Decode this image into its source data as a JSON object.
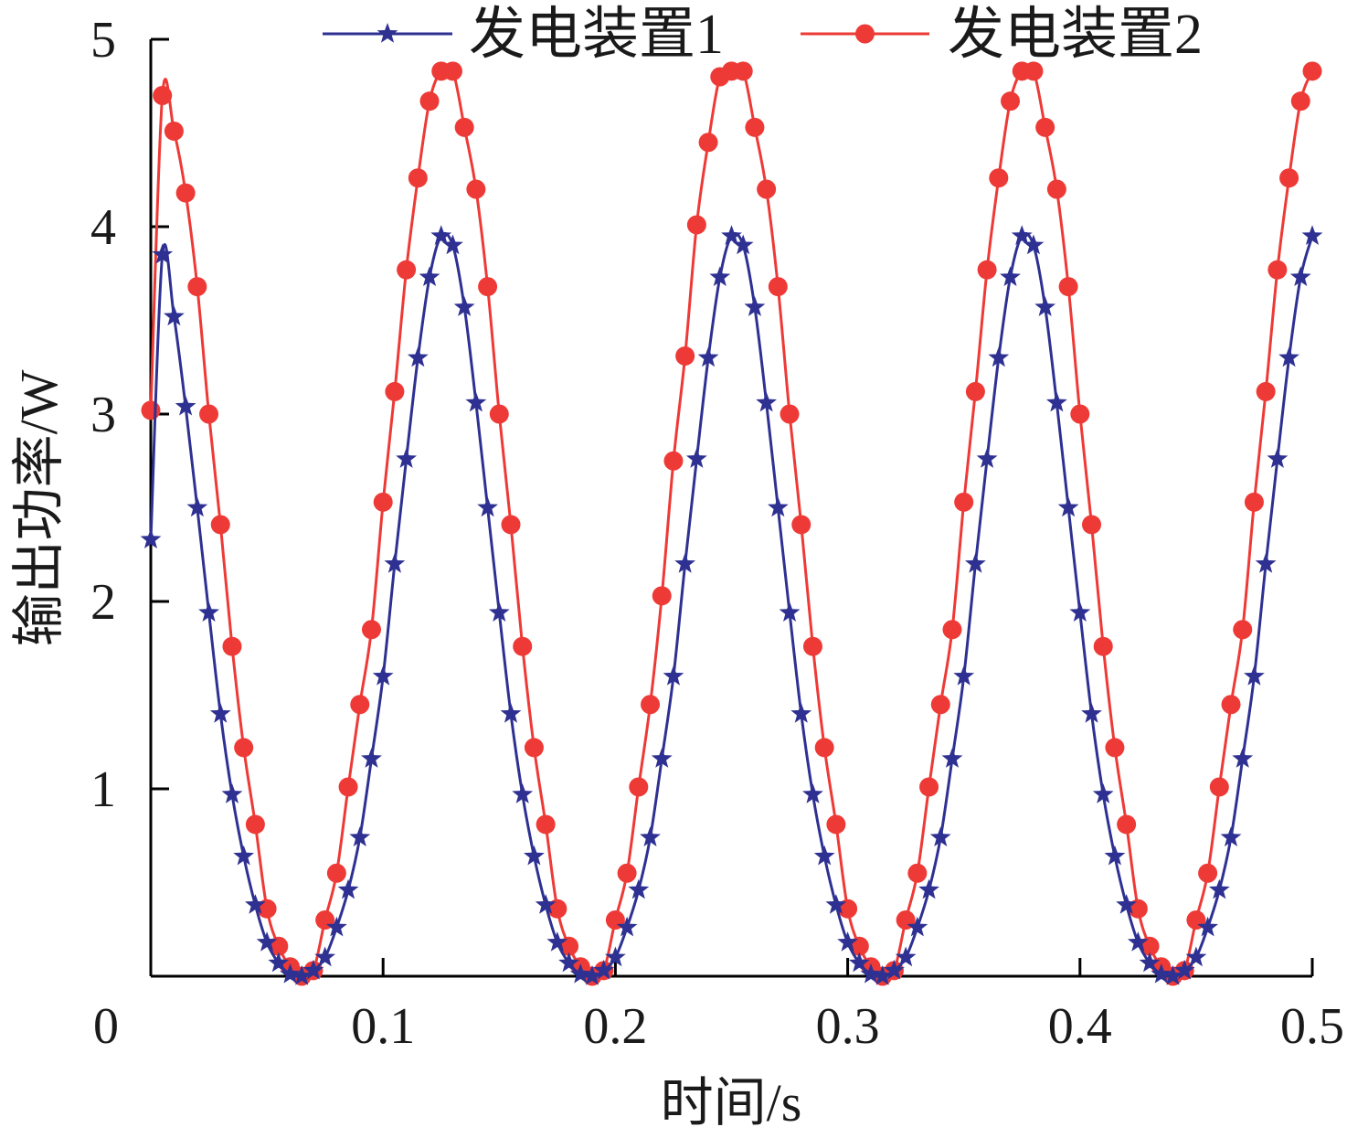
{
  "chart_data": {
    "type": "line",
    "title": "",
    "xlabel": "时间/s",
    "ylabel": "输出功率/W",
    "xlim": [
      0,
      0.5
    ],
    "ylim": [
      0,
      5
    ],
    "x_ticks": [
      0,
      0.1,
      0.2,
      0.3,
      0.4,
      0.5
    ],
    "x_tick_labels": [
      "0",
      "0.1",
      "0.2",
      "0.3",
      "0.4",
      "0.5"
    ],
    "y_ticks": [
      1,
      2,
      3,
      4,
      5
    ],
    "y_tick_labels": [
      "1",
      "2",
      "3",
      "4",
      "5"
    ],
    "grid": false,
    "legend_position": "top",
    "series": [
      {
        "name": "发电装置1",
        "color": "#2e3192",
        "marker": "star",
        "peak_power": 3.95,
        "peak_times": [
          0.005,
          0.128,
          0.253,
          0.378,
          0.5
        ],
        "trough_times": [
          0.065,
          0.19,
          0.315,
          0.44
        ],
        "start_power": 2.33,
        "x": [
          0.0,
          0.005,
          0.01,
          0.015,
          0.02,
          0.025,
          0.03,
          0.035,
          0.04,
          0.045,
          0.05,
          0.055,
          0.06,
          0.065,
          0.07,
          0.075,
          0.08,
          0.085,
          0.09,
          0.095,
          0.1,
          0.105,
          0.11,
          0.115,
          0.12,
          0.125,
          0.13,
          0.135,
          0.14,
          0.145,
          0.15,
          0.155,
          0.16,
          0.165,
          0.17,
          0.175,
          0.18,
          0.185,
          0.19,
          0.195,
          0.2,
          0.205,
          0.21,
          0.215,
          0.22,
          0.225,
          0.23,
          0.235,
          0.24,
          0.245,
          0.25,
          0.255,
          0.26,
          0.265,
          0.27,
          0.275,
          0.28,
          0.285,
          0.29,
          0.295,
          0.3,
          0.305,
          0.31,
          0.315,
          0.32,
          0.325,
          0.33,
          0.335,
          0.34,
          0.345,
          0.35,
          0.355,
          0.36,
          0.365,
          0.37,
          0.375,
          0.38,
          0.385,
          0.39,
          0.395,
          0.4,
          0.405,
          0.41,
          0.415,
          0.42,
          0.425,
          0.43,
          0.435,
          0.44,
          0.445,
          0.45,
          0.455,
          0.46,
          0.465,
          0.47,
          0.475,
          0.48,
          0.485,
          0.49,
          0.495,
          0.5
        ],
        "y": [
          2.33,
          3.85,
          3.52,
          3.04,
          2.5,
          1.94,
          1.4,
          0.97,
          0.64,
          0.38,
          0.18,
          0.07,
          0.01,
          0.0,
          0.03,
          0.1,
          0.26,
          0.46,
          0.74,
          1.16,
          1.6,
          2.2,
          2.76,
          3.3,
          3.73,
          3.95,
          3.9,
          3.57,
          3.06,
          2.5,
          1.94,
          1.4,
          0.97,
          0.64,
          0.38,
          0.18,
          0.07,
          0.01,
          0.0,
          0.03,
          0.1,
          0.26,
          0.46,
          0.74,
          1.16,
          1.6,
          2.2,
          2.76,
          3.3,
          3.73,
          3.95,
          3.9,
          3.57,
          3.06,
          2.5,
          1.94,
          1.4,
          0.97,
          0.64,
          0.38,
          0.18,
          0.07,
          0.01,
          0.0,
          0.03,
          0.1,
          0.26,
          0.46,
          0.74,
          1.16,
          1.6,
          2.2,
          2.76,
          3.3,
          3.73,
          3.95,
          3.9,
          3.57,
          3.06,
          2.5,
          1.94,
          1.4,
          0.97,
          0.64,
          0.38,
          0.18,
          0.07,
          0.01,
          0.0,
          0.03,
          0.1,
          0.26,
          0.46,
          0.74,
          1.16,
          1.6,
          2.2,
          2.76,
          3.3,
          3.73,
          3.95
        ]
      },
      {
        "name": "发电装置2",
        "color": "#ee3a36",
        "marker": "circle",
        "peak_power": 4.83,
        "peak_times": [
          0.005,
          0.13,
          0.255,
          0.38,
          0.5
        ],
        "trough_times": [
          0.067,
          0.192,
          0.317,
          0.442
        ],
        "start_power": 3.02,
        "x": [
          0.0,
          0.005,
          0.01,
          0.015,
          0.02,
          0.025,
          0.03,
          0.035,
          0.04,
          0.045,
          0.05,
          0.055,
          0.06,
          0.065,
          0.07,
          0.075,
          0.08,
          0.085,
          0.09,
          0.095,
          0.1,
          0.105,
          0.11,
          0.115,
          0.12,
          0.125,
          0.13,
          0.135,
          0.14,
          0.145,
          0.15,
          0.155,
          0.16,
          0.165,
          0.17,
          0.175,
          0.18,
          0.185,
          0.19,
          0.195,
          0.2,
          0.205,
          0.21,
          0.215,
          0.22,
          0.225,
          0.23,
          0.235,
          0.24,
          0.245,
          0.25,
          0.255,
          0.26,
          0.265,
          0.27,
          0.275,
          0.28,
          0.285,
          0.29,
          0.295,
          0.3,
          0.305,
          0.31,
          0.315,
          0.32,
          0.325,
          0.33,
          0.335,
          0.34,
          0.345,
          0.35,
          0.355,
          0.36,
          0.365,
          0.37,
          0.375,
          0.38,
          0.385,
          0.39,
          0.395,
          0.4,
          0.405,
          0.41,
          0.415,
          0.42,
          0.425,
          0.43,
          0.435,
          0.44,
          0.445,
          0.45,
          0.455,
          0.46,
          0.465,
          0.47,
          0.475,
          0.48,
          0.485,
          0.49,
          0.495,
          0.5
        ],
        "y": [
          3.02,
          4.7,
          4.51,
          4.18,
          3.68,
          3.0,
          2.41,
          1.76,
          1.22,
          0.81,
          0.36,
          0.16,
          0.05,
          0.0,
          0.03,
          0.3,
          0.55,
          1.01,
          1.45,
          1.85,
          2.53,
          3.12,
          3.77,
          4.26,
          4.67,
          4.83,
          4.83,
          4.53,
          4.2,
          3.68,
          3.0,
          2.41,
          1.76,
          1.22,
          0.81,
          0.36,
          0.16,
          0.05,
          0.0,
          0.03,
          0.3,
          0.55,
          1.01,
          1.45,
          2.03,
          2.75,
          3.31,
          4.01,
          4.45,
          4.8,
          4.83,
          4.83,
          4.53,
          4.2,
          3.68,
          3.0,
          2.41,
          1.76,
          1.22,
          0.81,
          0.36,
          0.16,
          0.05,
          0.0,
          0.03,
          0.3,
          0.55,
          1.01,
          1.45,
          1.85,
          2.53,
          3.12,
          3.77,
          4.26,
          4.67,
          4.83,
          4.83,
          4.53,
          4.2,
          3.68,
          3.0,
          2.41,
          1.76,
          1.22,
          0.81,
          0.36,
          0.16,
          0.05,
          0.0,
          0.03,
          0.3,
          0.55,
          1.01,
          1.45,
          1.85,
          2.53,
          3.12,
          3.77,
          4.26,
          4.67,
          4.83
        ]
      }
    ]
  }
}
